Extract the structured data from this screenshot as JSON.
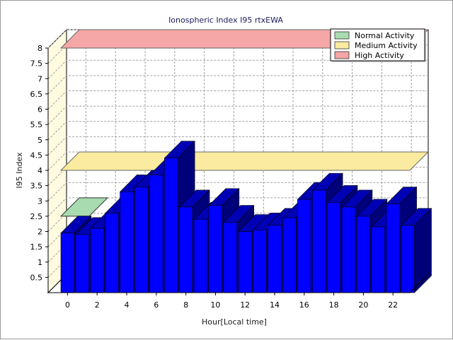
{
  "chart_data": {
    "type": "bar",
    "title": "Ionospheric Index I95 rtxEWA",
    "xlabel": "Hour[Local time]",
    "ylabel": "I95 Index",
    "ylim": [
      0,
      8
    ],
    "y_ticks": [
      "0.5",
      "1",
      "1.5",
      "2",
      "2.5",
      "3",
      "3.5",
      "4",
      "4.5",
      "5",
      "5.5",
      "6",
      "6.5",
      "7",
      "7.5",
      "8"
    ],
    "x_ticks": [
      "0",
      "2",
      "4",
      "6",
      "8",
      "10",
      "12",
      "14",
      "16",
      "18",
      "20",
      "22"
    ],
    "categories": [
      0,
      1,
      2,
      3,
      4,
      5,
      6,
      7,
      8,
      9,
      10,
      11,
      12,
      13,
      14,
      15,
      16,
      17,
      18,
      19,
      20,
      21,
      22,
      23
    ],
    "values": [
      1.95,
      1.9,
      2.1,
      2.6,
      3.3,
      3.45,
      3.85,
      4.4,
      2.8,
      2.4,
      2.85,
      2.3,
      2.0,
      2.05,
      2.2,
      2.45,
      3.05,
      3.35,
      2.95,
      2.8,
      2.5,
      2.15,
      2.9,
      2.2
    ],
    "bands": [
      {
        "name": "Normal Activity",
        "value": 2.5,
        "color": "#a8dcb0"
      },
      {
        "name": "Medium Activity",
        "value": 4.0,
        "color": "#fbeba0"
      },
      {
        "name": "High Activity",
        "value": 8.0,
        "color": "#f5a6a6"
      }
    ],
    "bar_color": "#0000ff",
    "grid": true,
    "legend_position": "top-right"
  }
}
